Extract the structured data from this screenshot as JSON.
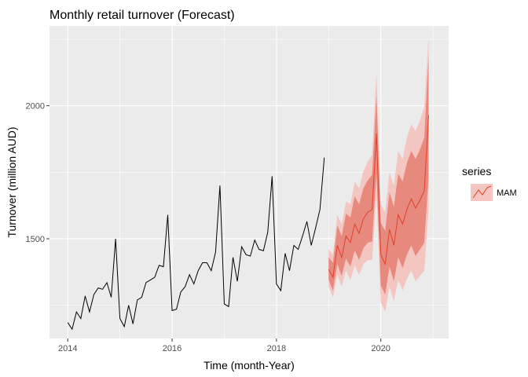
{
  "chart_data": {
    "type": "line",
    "title": "Monthly retail turnover (Forecast)",
    "xlabel": "Time (month-Year)",
    "ylabel": "Turnover (million AUD)",
    "xlim": [
      2013.65,
      2021.3
    ],
    "ylim": [
      1125,
      2300
    ],
    "x_ticks": [
      2014,
      2016,
      2018,
      2020
    ],
    "y_ticks": [
      1500,
      2000
    ],
    "grid": true,
    "legend": {
      "title": "series",
      "entries": [
        "MAM"
      ],
      "position": "right"
    },
    "colors": {
      "panel": "#ebebeb",
      "grid": "#ffffff",
      "history": "#000000",
      "forecast": "#e0412a",
      "band80": "#e8897e",
      "band95": "#f4c6c2"
    },
    "history": {
      "x_start": 2014.0,
      "x_step": 0.08333,
      "values": [
        1185,
        1160,
        1225,
        1200,
        1285,
        1225,
        1290,
        1315,
        1310,
        1335,
        1280,
        1500,
        1200,
        1170,
        1250,
        1180,
        1270,
        1280,
        1335,
        1345,
        1355,
        1400,
        1395,
        1590,
        1230,
        1235,
        1300,
        1320,
        1365,
        1330,
        1380,
        1410,
        1410,
        1380,
        1450,
        1700,
        1255,
        1245,
        1430,
        1340,
        1470,
        1440,
        1435,
        1495,
        1460,
        1455,
        1525,
        1735,
        1330,
        1305,
        1445,
        1380,
        1475,
        1460,
        1510,
        1565,
        1475,
        1540,
        1610,
        1805
      ]
    },
    "series": [
      {
        "name": "MAM",
        "x_start": 2019.0,
        "x_step": 0.08333,
        "values": [
          1385,
          1355,
          1475,
          1430,
          1510,
          1485,
          1555,
          1520,
          1575,
          1600,
          1610,
          1895,
          1440,
          1405,
          1535,
          1475,
          1590,
          1555,
          1610,
          1650,
          1615,
          1645,
          1680,
          1965
        ],
        "lo80": [
          1345,
          1305,
          1405,
          1360,
          1425,
          1395,
          1455,
          1420,
          1465,
          1485,
          1490,
          1745,
          1325,
          1290,
          1395,
          1340,
          1430,
          1390,
          1440,
          1475,
          1435,
          1460,
          1485,
          1735
        ],
        "hi80": [
          1430,
          1410,
          1550,
          1510,
          1595,
          1580,
          1660,
          1630,
          1690,
          1720,
          1740,
          2040,
          1560,
          1530,
          1675,
          1620,
          1745,
          1715,
          1785,
          1830,
          1800,
          1835,
          1880,
          2190
        ],
        "lo95": [
          1320,
          1280,
          1365,
          1320,
          1380,
          1345,
          1400,
          1365,
          1405,
          1420,
          1420,
          1665,
          1260,
          1225,
          1320,
          1265,
          1345,
          1305,
          1350,
          1380,
          1340,
          1360,
          1380,
          1610
        ],
        "hi95": [
          1460,
          1440,
          1590,
          1555,
          1640,
          1630,
          1715,
          1690,
          1755,
          1790,
          1815,
          2125,
          1630,
          1600,
          1750,
          1700,
          1830,
          1800,
          1880,
          1930,
          1905,
          1945,
          1995,
          2265
        ]
      }
    ]
  }
}
